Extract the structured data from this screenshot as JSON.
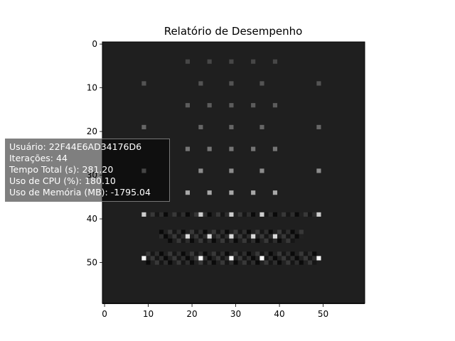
{
  "chart_data": {
    "type": "heatmap",
    "title": "Relatório de Desempenho",
    "xlabel": "",
    "ylabel": "",
    "grid_size": [
      60,
      60
    ],
    "x_ticks": [
      0,
      10,
      20,
      30,
      40,
      50
    ],
    "y_ticks": [
      0,
      10,
      20,
      30,
      40,
      50
    ],
    "background_value": 0.12,
    "colormap": "gray",
    "bright_points": [
      {
        "row": 4,
        "cols": [
          19,
          24,
          29,
          34,
          39
        ],
        "value": 0.28
      },
      {
        "row": 9,
        "cols": [
          9,
          22,
          29,
          36,
          49
        ],
        "value": 0.33
      },
      {
        "row": 14,
        "cols": [
          19,
          24,
          29,
          34,
          39
        ],
        "value": 0.36
      },
      {
        "row": 19,
        "cols": [
          9,
          22,
          29,
          36,
          49
        ],
        "value": 0.4
      },
      {
        "row": 24,
        "cols": [
          19,
          24,
          29,
          34,
          39
        ],
        "value": 0.46
      },
      {
        "row": 29,
        "cols": [
          9,
          22,
          29,
          36,
          49
        ],
        "value": 0.55
      },
      {
        "row": 34,
        "cols": [
          19,
          24,
          29,
          34,
          39
        ],
        "value": 0.66
      },
      {
        "row": 39,
        "cols": [
          9,
          22,
          29,
          36,
          49
        ],
        "value": 0.8
      },
      {
        "row": 44,
        "cols": [
          19,
          24,
          29,
          34,
          39
        ],
        "value": 0.85
      },
      {
        "row": 49,
        "cols": [
          9,
          22,
          29,
          36,
          49
        ],
        "value": 0.97
      }
    ],
    "interference_rows": [
      {
        "row": 39,
        "from": 10,
        "to": 48
      },
      {
        "row": 43,
        "from": 13,
        "to": 45
      },
      {
        "row": 44,
        "from": 13,
        "to": 45
      },
      {
        "row": 45,
        "from": 15,
        "to": 43
      },
      {
        "row": 48,
        "from": 10,
        "to": 48
      },
      {
        "row": 49,
        "from": 10,
        "to": 48
      },
      {
        "row": 50,
        "from": 10,
        "to": 48
      }
    ],
    "annotation": [
      "Usuário: 22F44E6AD34176D6",
      "Iterações: 44",
      "Tempo Total (s): 281.20",
      "Uso de CPU (%): 180.10",
      "Uso de Memória (MB): -1795.04"
    ]
  }
}
